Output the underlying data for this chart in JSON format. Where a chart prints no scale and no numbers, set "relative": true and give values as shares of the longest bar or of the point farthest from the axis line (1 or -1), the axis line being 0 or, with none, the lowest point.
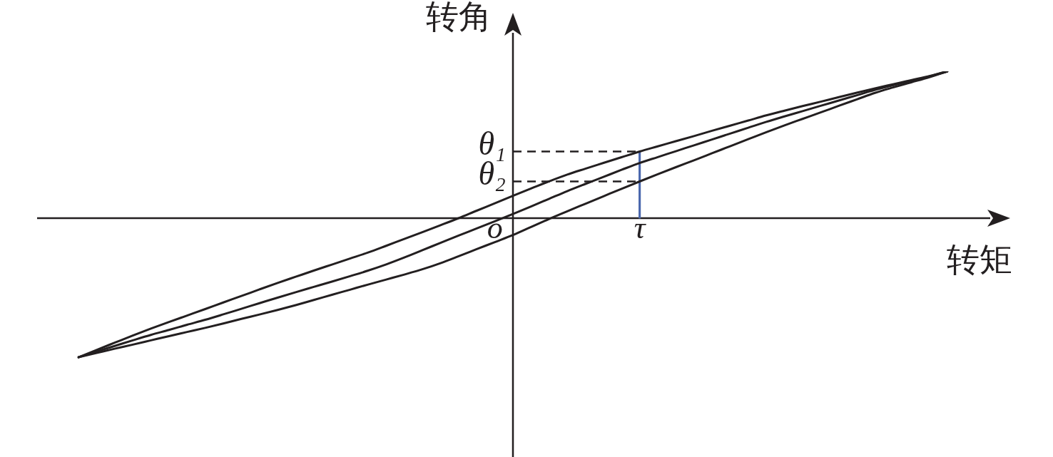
{
  "chart_data": {
    "type": "line",
    "relative": true,
    "xlabel": "转矩",
    "ylabel": "转角",
    "categories": [
      null,
      null,
      null,
      null,
      null,
      null,
      null,
      null,
      null,
      null,
      null,
      null,
      null,
      null,
      null,
      null,
      null,
      null,
      null,
      null,
      null,
      null,
      null,
      "o",
      null,
      null,
      null,
      null,
      null,
      null,
      null,
      "τ",
      null,
      null,
      null,
      null,
      null,
      null,
      null,
      null,
      null,
      null,
      null,
      null,
      null,
      null,
      null,
      null,
      null
    ],
    "series": [
      {
        "color": "#231f20",
        "values": [
          -0.947,
          -0.897,
          -0.848,
          -0.799,
          -0.752,
          -0.707,
          -0.663,
          -0.619,
          -0.574,
          -0.53,
          -0.485,
          -0.441,
          -0.399,
          -0.357,
          -0.316,
          -0.275,
          -0.234,
          -0.188,
          -0.141,
          -0.095,
          -0.048,
          0,
          0.051,
          0.101,
          0.152,
          0.202,
          0.251,
          0.297,
          0.337,
          0.376,
          0.415,
          0.454,
          0.489,
          0.524,
          0.559,
          0.595,
          0.63,
          0.665,
          0.7,
          0.732,
          0.763,
          0.793,
          0.824,
          0.854,
          0.884,
          0.912,
          0.94,
          0.967,
          1
        ]
      },
      {
        "color": "#231f20",
        "values": [
          -0.947,
          -0.908,
          -0.87,
          -0.832,
          -0.795,
          -0.761,
          -0.726,
          -0.692,
          -0.655,
          -0.617,
          -0.579,
          -0.541,
          -0.504,
          -0.468,
          -0.432,
          -0.395,
          -0.357,
          -0.315,
          -0.268,
          -0.218,
          -0.168,
          -0.118,
          -0.07,
          -0.021,
          0.029,
          0.08,
          0.132,
          0.184,
          0.233,
          0.281,
          0.329,
          0.376,
          0.416,
          0.456,
          0.496,
          0.536,
          0.576,
          0.616,
          0.656,
          0.693,
          0.729,
          0.765,
          0.801,
          0.837,
          0.873,
          0.905,
          0.935,
          0.965,
          1
        ]
      },
      {
        "color": "#231f20",
        "values": [
          -0.947,
          -0.918,
          -0.889,
          -0.861,
          -0.832,
          -0.803,
          -0.775,
          -0.747,
          -0.717,
          -0.686,
          -0.656,
          -0.625,
          -0.592,
          -0.557,
          -0.522,
          -0.487,
          -0.452,
          -0.418,
          -0.384,
          -0.348,
          -0.306,
          -0.259,
          -0.211,
          -0.163,
          -0.115,
          -0.06,
          -0.005,
          0.047,
          0.098,
          0.149,
          0.2,
          0.25,
          0.299,
          0.347,
          0.394,
          0.442,
          0.49,
          0.538,
          0.586,
          0.632,
          0.676,
          0.72,
          0.765,
          0.809,
          0.853,
          0.89,
          0.925,
          0.96,
          1
        ]
      },
      {
        "type": "bar",
        "color": "#4a67ad",
        "values": [
          null,
          null,
          null,
          null,
          null,
          null,
          null,
          null,
          null,
          null,
          null,
          null,
          null,
          null,
          null,
          null,
          null,
          null,
          null,
          null,
          null,
          null,
          null,
          null,
          null,
          null,
          null,
          null,
          null,
          null,
          null,
          0.454,
          null,
          null,
          null,
          null,
          null,
          null,
          null,
          null,
          null,
          null,
          null,
          null,
          null,
          null,
          null,
          null,
          null
        ]
      }
    ],
    "ref_lines": [
      {
        "axis": "y",
        "value": 0.454,
        "label": "θ₁",
        "color": "#231f20",
        "line_style": "dashed"
      },
      {
        "axis": "y",
        "value": 0.25,
        "label": "θ₂",
        "color": "#231f20",
        "line_style": "dashed"
      }
    ],
    "marker": "none",
    "line_style": "solid"
  }
}
